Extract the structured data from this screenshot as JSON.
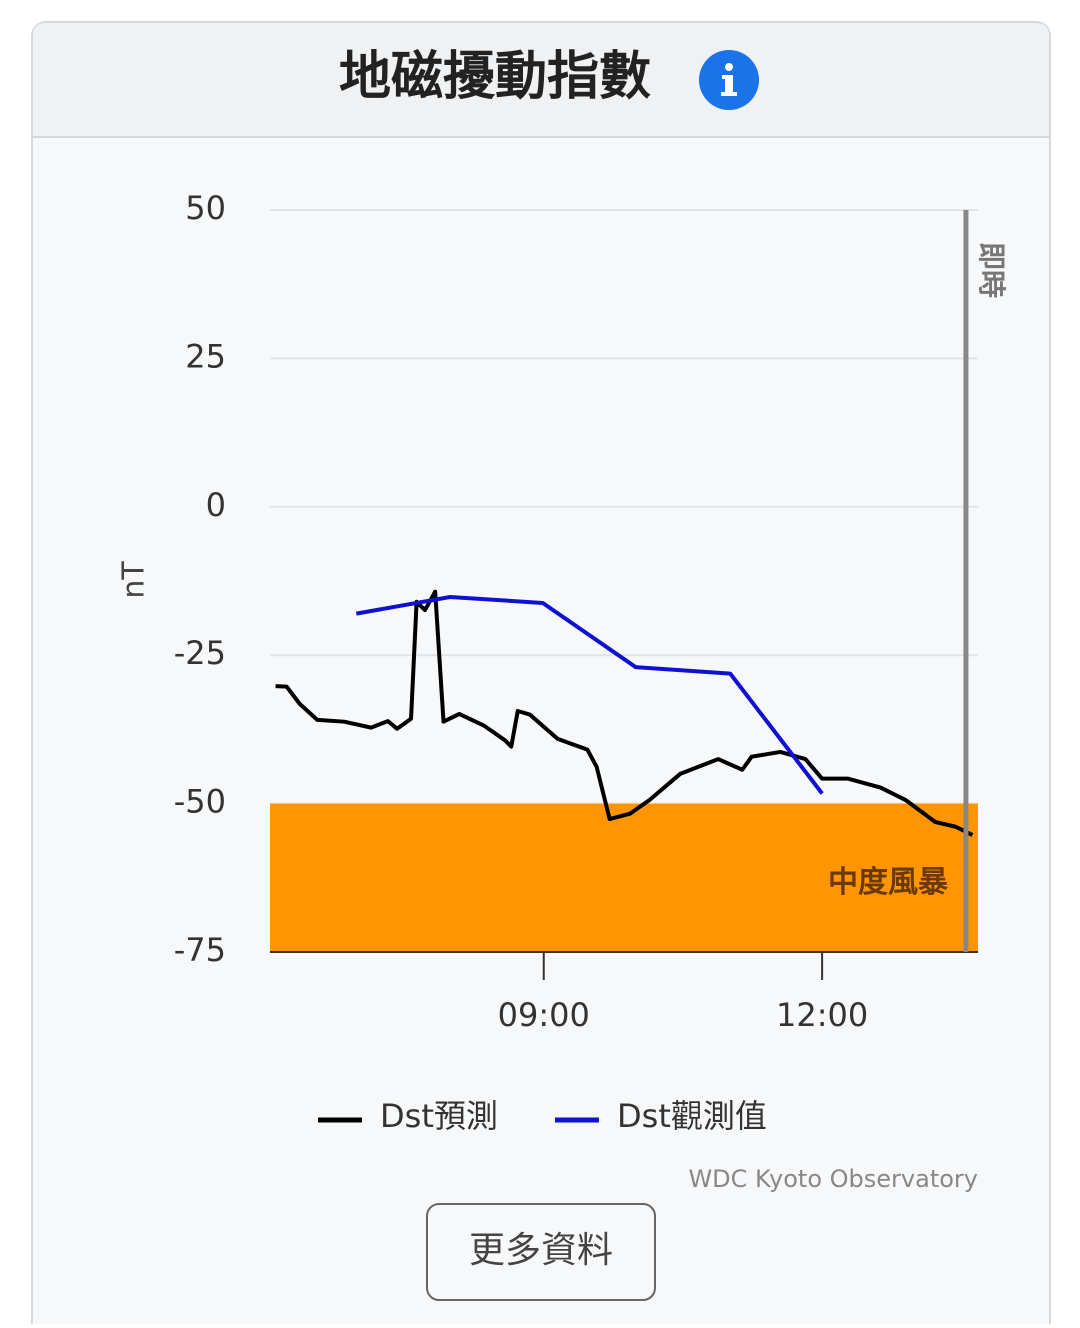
{
  "header": {
    "title": "地磁擾動指數"
  },
  "chart_data": {
    "type": "line",
    "ylabel": "nT",
    "ylim": [
      -75,
      50
    ],
    "yticks": [
      50,
      25,
      0,
      -25,
      -50,
      -75
    ],
    "grid": true,
    "xlim": [
      6.05,
      13.68
    ],
    "xticks": [
      {
        "value": 9,
        "label": "09:00"
      },
      {
        "value": 12,
        "label": "12:00"
      }
    ],
    "bands": [
      {
        "from": -50,
        "to": -75,
        "label": "中度風暴",
        "color": "#ff9500"
      }
    ],
    "now_line": {
      "x": 13.55,
      "label": "即時",
      "color": "#888888"
    },
    "series": [
      {
        "name": "Dst預測",
        "color": "#000000",
        "x": [
          6.11,
          6.23,
          6.37,
          6.56,
          6.85,
          7.14,
          7.32,
          7.42,
          7.57,
          7.63,
          7.72,
          7.83,
          7.92,
          8.09,
          8.36,
          8.58,
          8.65,
          8.72,
          8.85,
          9.15,
          9.47,
          9.57,
          9.71,
          9.93,
          10.14,
          10.47,
          10.88,
          11.14,
          11.24,
          11.55,
          11.82,
          12.0,
          12.28,
          12.63,
          12.9,
          13.22,
          13.44,
          13.62
        ],
        "values": [
          -30.2,
          -30.3,
          -33.2,
          -35.9,
          -36.2,
          -37.2,
          -36.1,
          -37.4,
          -35.7,
          -16.0,
          -17.4,
          -14.3,
          -36.2,
          -34.9,
          -36.9,
          -39.3,
          -40.4,
          -34.4,
          -35.0,
          -39.1,
          -40.9,
          -43.8,
          -52.6,
          -51.7,
          -49.4,
          -45.0,
          -42.5,
          -44.3,
          -42.1,
          -41.3,
          -42.5,
          -45.8,
          -45.8,
          -47.3,
          -49.4,
          -53.1,
          -53.9,
          -55.3
        ]
      },
      {
        "name": "Dst觀測值",
        "color": "#1010d0",
        "x": [
          6.98,
          7.99,
          8.99,
          9.99,
          11.01,
          12.0
        ],
        "values": [
          -18.0,
          -15.2,
          -16.2,
          -27.0,
          -28.1,
          -48.3
        ]
      }
    ]
  },
  "source": "WDC Kyoto Observatory",
  "button": "更多資料"
}
